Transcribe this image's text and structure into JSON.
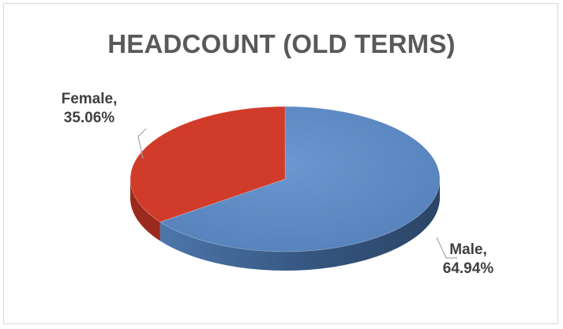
{
  "chart_data": {
    "type": "pie",
    "title": "HEADCOUNT (OLD TERMS)",
    "three_d": true,
    "slices": [
      {
        "label": "Male",
        "value": 64.94,
        "display": "64.94%",
        "color": "#5a89c4",
        "side_color": "#3b5f8d"
      },
      {
        "label": "Female",
        "value": 35.06,
        "display": "35.06%",
        "color": "#d13b2a",
        "side_color": "#9a2a1e"
      }
    ],
    "legend": "none"
  }
}
